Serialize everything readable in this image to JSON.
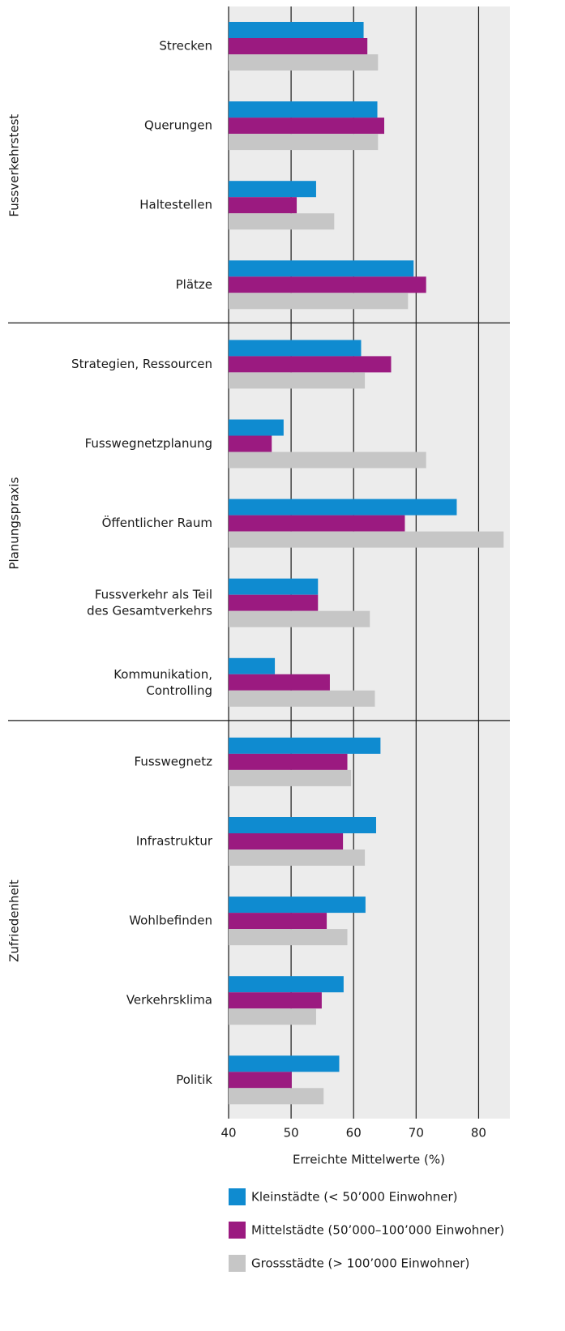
{
  "chart_data": {
    "type": "hbar",
    "x_label": "Erreichte Mittelwerte (%)",
    "groups": [
      {
        "name": "Fussverkehrstest",
        "categories": [
          "Strecken",
          "Querungen",
          "Haltestellen",
          "Plätze"
        ]
      },
      {
        "name": "Planungspraxis",
        "categories": [
          "Strategien, Ressourcen",
          "Fusswegnetzplanung",
          "Öffentlicher Raum",
          "Fussverkehr als Teil\ndes Gesamtverkehrs",
          "Kommunikation,\nControlling"
        ]
      },
      {
        "name": "Zufriedenheit",
        "categories": [
          "Fusswegnetz",
          "Infrastruktur",
          "Wohlbefinden",
          "Verkehrsklima",
          "Politik"
        ]
      }
    ],
    "series": [
      {
        "name": "Kleinstädte (< 50’000 Einwohner)",
        "color": "#0f8bd0",
        "values": [
          61.6,
          63.8,
          54.0,
          69.6,
          61.2,
          48.8,
          76.5,
          54.3,
          47.4,
          64.3,
          63.6,
          61.9,
          58.4,
          57.7
        ]
      },
      {
        "name": "Mittelstädte (50’000–100’000 Einwohner)",
        "color": "#9b1a80",
        "values": [
          62.2,
          64.9,
          50.9,
          71.6,
          66.0,
          46.9,
          68.2,
          54.3,
          56.2,
          59.0,
          58.3,
          55.7,
          54.9,
          50.1
        ]
      },
      {
        "name": "Grossstädte (> 100’000 Einwohner)",
        "color": "#c6c6c6",
        "values": [
          63.9,
          63.9,
          56.9,
          68.7,
          61.8,
          71.6,
          84.0,
          62.6,
          63.4,
          59.6,
          61.8,
          59.0,
          54.0,
          55.2
        ]
      }
    ],
    "xlim": [
      40,
      85
    ],
    "xticks": [
      40,
      50,
      60,
      70,
      80
    ],
    "grid": true
  }
}
